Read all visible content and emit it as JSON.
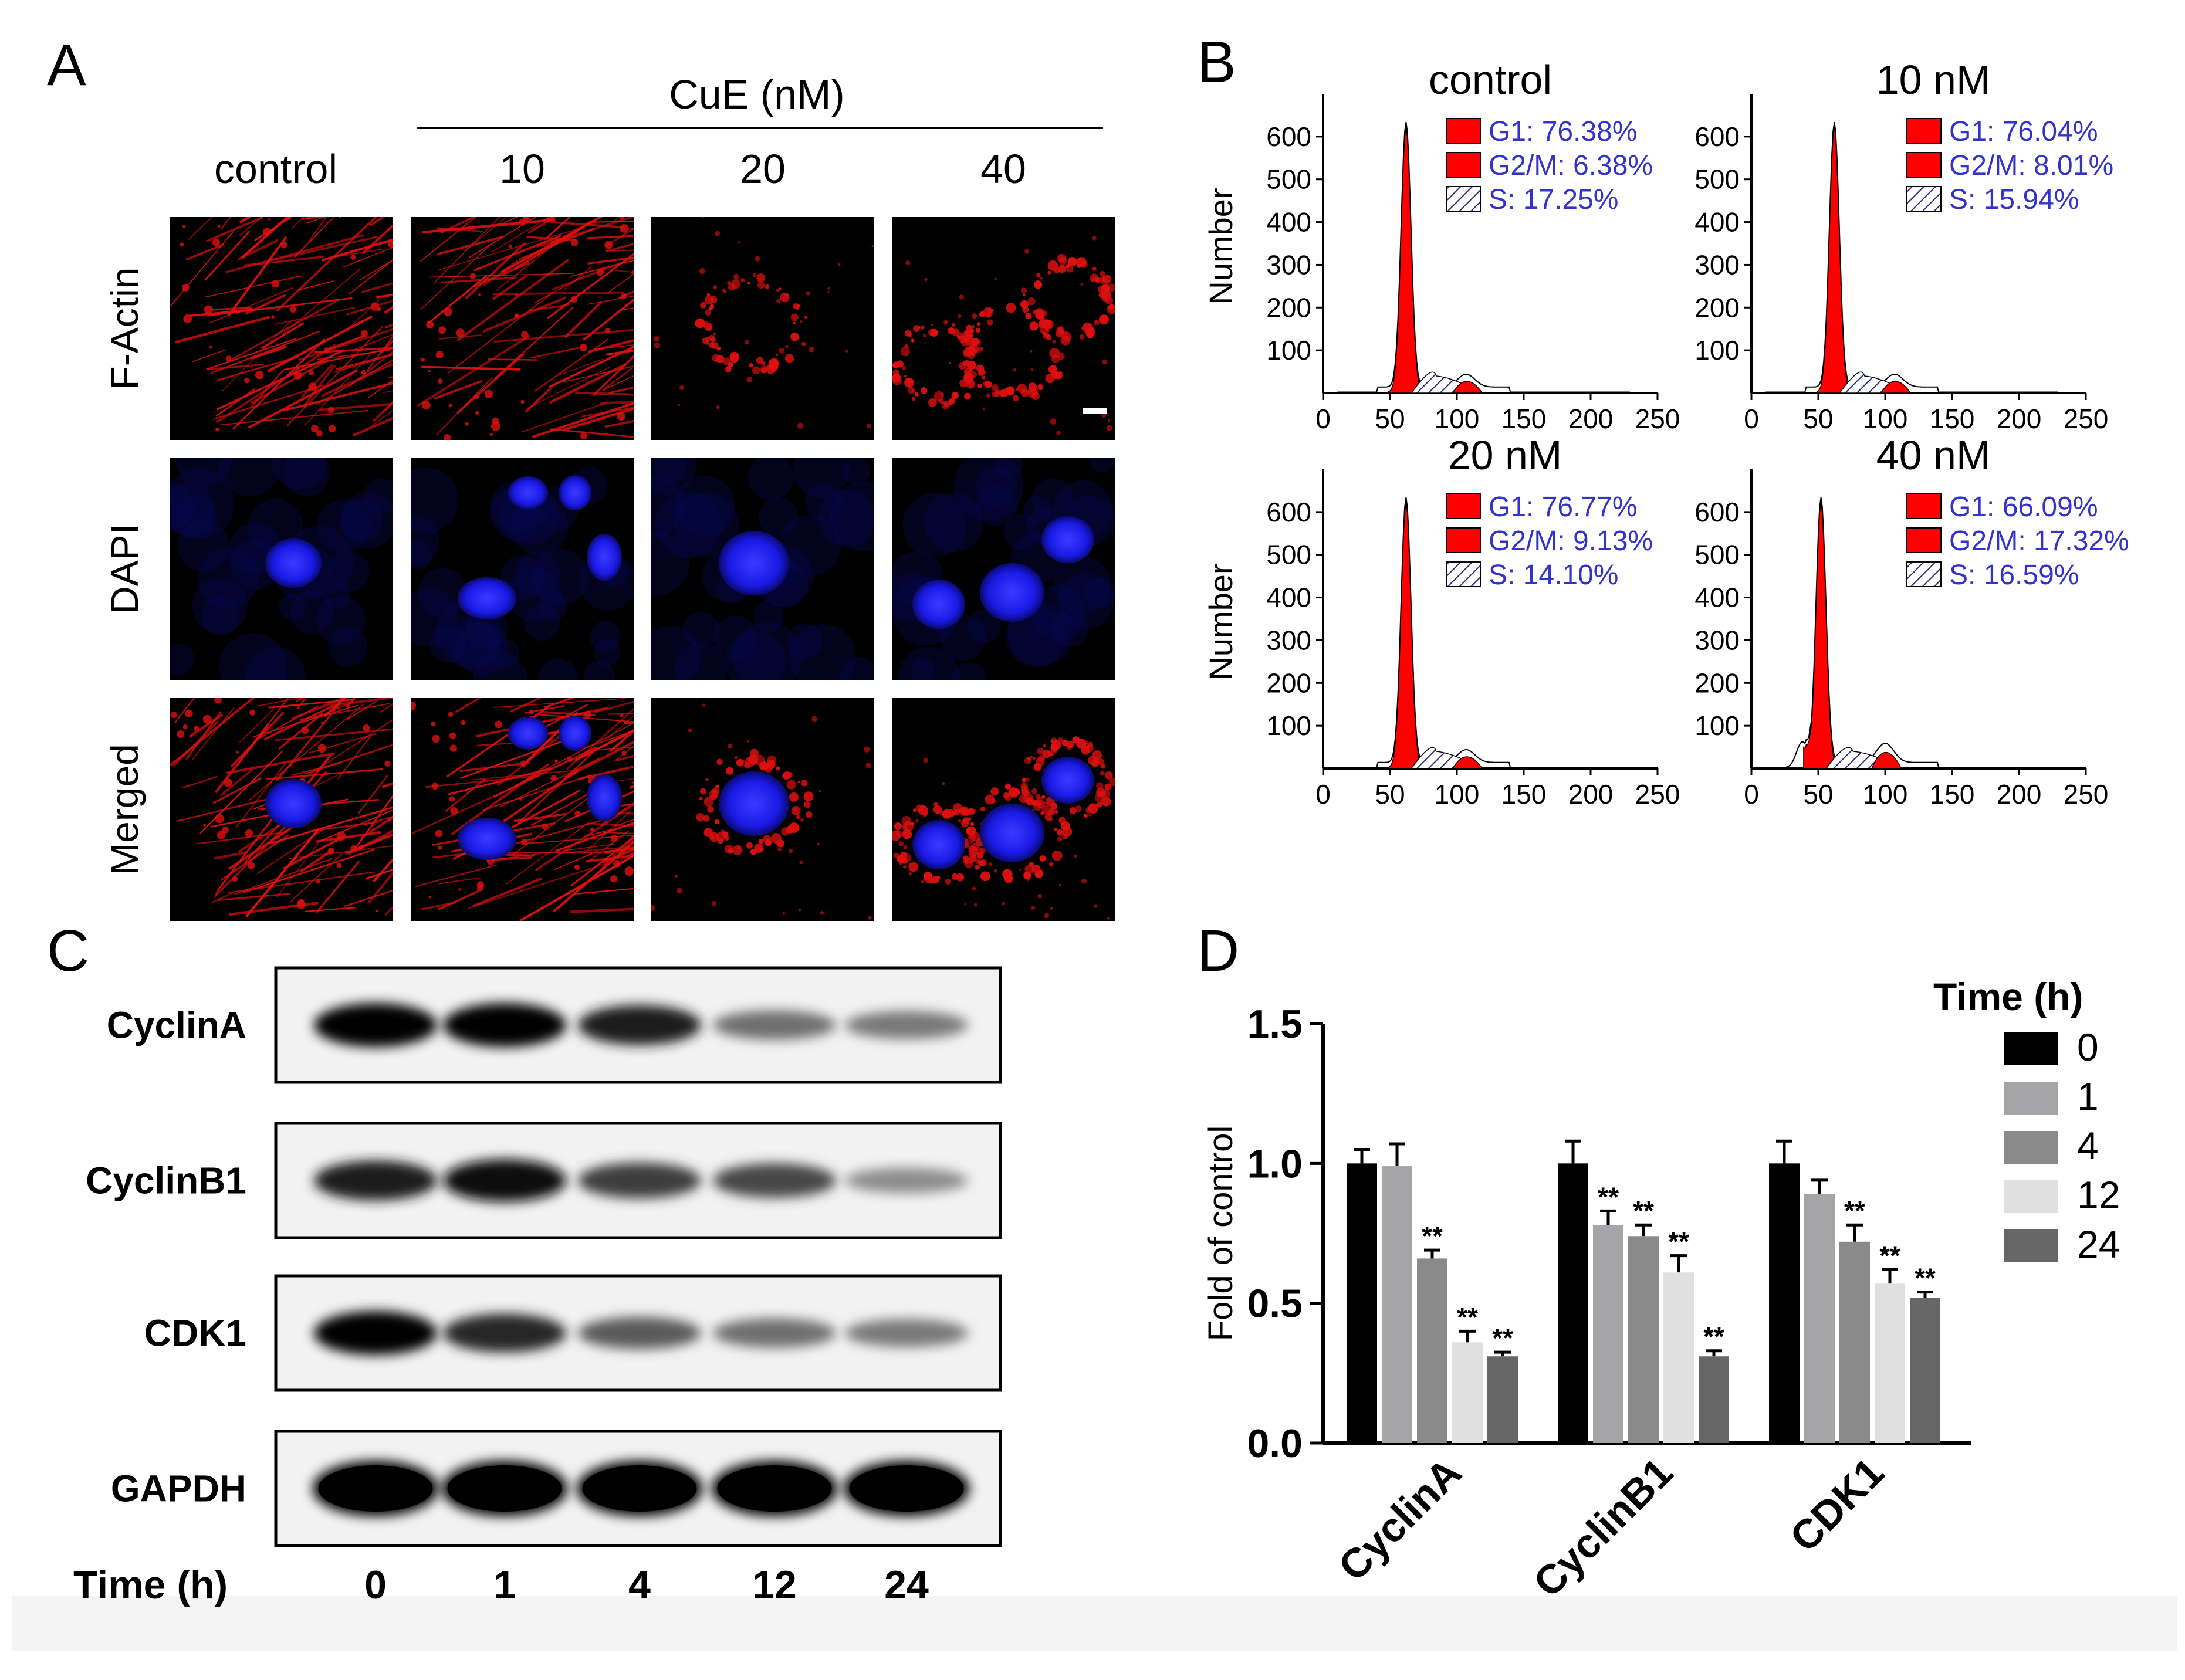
{
  "panel_letters": {
    "a": "A",
    "b": "B",
    "c": "C",
    "d": "D"
  },
  "panelA": {
    "treatment_label": "CuE (nM)",
    "columns": [
      "control",
      "10",
      "20",
      "40"
    ],
    "rows": [
      "F-Actin",
      "DAPI",
      "Merged"
    ],
    "colors": {
      "actin": "#e01010",
      "dapi": "#1a1ae6"
    }
  },
  "panelB": {
    "ylabel": "Number",
    "yticks": [
      100,
      200,
      300,
      400,
      500,
      600
    ],
    "xticks": [
      0,
      50,
      100,
      150,
      200,
      250
    ],
    "legend_colors": {
      "g1": "#ff0000",
      "g2m": "#ff0000",
      "s": "#ffffff"
    },
    "text_color": "#3333cc",
    "plots": [
      {
        "title": "control",
        "g1": "G1: 76.38%",
        "g2m": "G2/M: 6.38%",
        "s": "S: 17.25%"
      },
      {
        "title": "10 nM",
        "g1": "G1: 76.04%",
        "g2m": "G2/M: 8.01%",
        "s": "S: 15.94%"
      },
      {
        "title": "20 nM",
        "g1": "G1: 76.77%",
        "g2m": "G2/M: 9.13%",
        "s": "S: 14.10%"
      },
      {
        "title": "40 nM",
        "g1": "G1: 66.09%",
        "g2m": "G2/M: 17.32%",
        "s": "S: 16.59%"
      }
    ]
  },
  "panelC": {
    "proteins": [
      "CyclinA",
      "CyclinB1",
      "CDK1",
      "GAPDH"
    ],
    "time_label": "Time (h)",
    "times": [
      "0",
      "1",
      "4",
      "12",
      "24"
    ],
    "band_intensity": [
      [
        1.0,
        1.0,
        0.85,
        0.45,
        0.4
      ],
      [
        0.85,
        0.95,
        0.7,
        0.65,
        0.3
      ],
      [
        1.0,
        0.8,
        0.55,
        0.45,
        0.4
      ],
      [
        1.0,
        1.0,
        1.0,
        1.0,
        1.0
      ]
    ]
  },
  "chart_data": {
    "type": "bar",
    "categories": [
      "CyclinA",
      "CyclinB1",
      "CDK1"
    ],
    "ylabel": "Fold of control",
    "ylim": [
      0,
      1.5
    ],
    "yticks": [
      "0.0",
      "0.5",
      "1.0",
      "1.5"
    ],
    "legend_title": "Time (h)",
    "legend_placement": "right",
    "significance": "**",
    "series": [
      {
        "name": "0",
        "color": "#000000",
        "values": [
          1.0,
          1.0,
          1.0
        ],
        "errors": [
          0.05,
          0.08,
          0.08
        ],
        "sig": [
          false,
          false,
          false
        ]
      },
      {
        "name": "1",
        "color": "#a5a5a8",
        "values": [
          0.99,
          0.78,
          0.89
        ],
        "errors": [
          0.08,
          0.05,
          0.05
        ],
        "sig": [
          false,
          true,
          false
        ]
      },
      {
        "name": "4",
        "color": "#8a8a8a",
        "values": [
          0.66,
          0.74,
          0.72
        ],
        "errors": [
          0.03,
          0.04,
          0.06
        ],
        "sig": [
          true,
          true,
          true
        ]
      },
      {
        "name": "12",
        "color": "#e0e0e0",
        "values": [
          0.36,
          0.61,
          0.57
        ],
        "errors": [
          0.04,
          0.06,
          0.05
        ],
        "sig": [
          true,
          true,
          true
        ]
      },
      {
        "name": "24",
        "color": "#666666",
        "values": [
          0.31,
          0.31,
          0.52
        ],
        "errors": [
          0.015,
          0.02,
          0.02
        ],
        "sig": [
          true,
          true,
          true
        ]
      }
    ]
  }
}
